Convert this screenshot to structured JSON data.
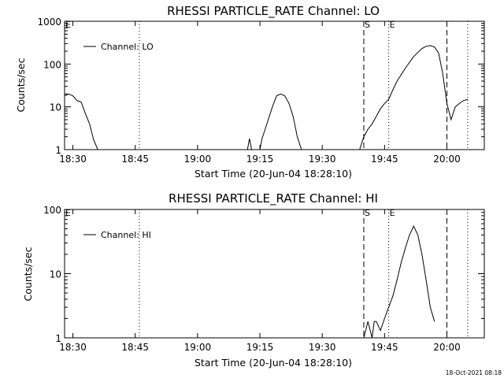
{
  "footer": {
    "timestamp": "18-Oct-2021 08:18"
  },
  "colors": {
    "background": "#ffffff",
    "foreground": "#000000"
  },
  "chart_data": [
    {
      "type": "line",
      "title": "RHESSI PARTICLE_RATE Channel: LO",
      "xlabel": "Start Time (20-Jun-04 18:28:10)",
      "ylabel": "Counts/sec",
      "yscale": "log",
      "xlim": [
        "18:28",
        "20:09"
      ],
      "ylim": [
        1,
        1000
      ],
      "xticks": [
        "18:30",
        "18:45",
        "19:00",
        "19:15",
        "19:30",
        "19:45",
        "20:00"
      ],
      "yticks": [
        {
          "value": 1,
          "label": "1"
        },
        {
          "value": 10,
          "label": "10"
        },
        {
          "value": 100,
          "label": "100"
        },
        {
          "value": 1000,
          "label": "1000"
        }
      ],
      "legend": {
        "label": "Channel: LO",
        "position": "top-left"
      },
      "markers": [
        {
          "time": "18:28",
          "label": "E",
          "style": "none"
        },
        {
          "time": "18:46",
          "label": "",
          "style": "dotted"
        },
        {
          "time": "19:40",
          "label": "S",
          "style": "dashed"
        },
        {
          "time": "19:46",
          "label": "E",
          "style": "dotted"
        },
        {
          "time": "20:00",
          "label": "",
          "style": "dashed"
        },
        {
          "time": "20:05",
          "label": "",
          "style": "dotted"
        }
      ],
      "series": [
        {
          "segments": [
            [
              [
                "18:28",
                18
              ],
              [
                "18:29",
                20
              ],
              [
                "18:30",
                18
              ],
              [
                "18:31",
                14
              ],
              [
                "18:32",
                13
              ],
              [
                "18:33",
                7
              ],
              [
                "18:34",
                4
              ],
              [
                "18:35",
                1.7
              ],
              [
                "18:36",
                1
              ]
            ],
            [
              [
                "19:12",
                1
              ],
              [
                "19:12.5",
                1.8
              ],
              [
                "19:13",
                1
              ]
            ],
            [
              [
                "19:15",
                1
              ],
              [
                "19:15.5",
                1.8
              ],
              [
                "19:16",
                2.5
              ],
              [
                "19:17",
                5
              ],
              [
                "19:18",
                10
              ],
              [
                "19:19",
                18
              ],
              [
                "19:20",
                20
              ],
              [
                "19:21",
                18
              ],
              [
                "19:22",
                12
              ],
              [
                "19:23",
                6
              ],
              [
                "19:24",
                2
              ],
              [
                "19:25",
                1
              ]
            ],
            [
              [
                "19:39",
                1
              ],
              [
                "19:40",
                2
              ],
              [
                "19:41",
                3
              ],
              [
                "19:42",
                4
              ],
              [
                "19:43",
                6
              ],
              [
                "19:44",
                9
              ],
              [
                "19:45",
                12
              ],
              [
                "19:46",
                15
              ],
              [
                "19:47",
                25
              ],
              [
                "19:48",
                40
              ],
              [
                "19:50",
                80
              ],
              [
                "19:52",
                150
              ],
              [
                "19:54",
                230
              ],
              [
                "19:55",
                260
              ],
              [
                "19:56",
                270
              ],
              [
                "19:57",
                250
              ],
              [
                "19:58",
                180
              ],
              [
                "19:59",
                60
              ],
              [
                "20:00",
                12
              ],
              [
                "20:01",
                5
              ],
              [
                "20:02",
                10
              ],
              [
                "20:03",
                12
              ],
              [
                "20:04",
                14
              ],
              [
                "20:05",
                15
              ]
            ]
          ]
        }
      ]
    },
    {
      "type": "line",
      "title": "RHESSI PARTICLE_RATE Channel: HI",
      "xlabel": "Start Time (20-Jun-04 18:28:10)",
      "ylabel": "Counts/sec",
      "yscale": "log",
      "xlim": [
        "18:28",
        "20:09"
      ],
      "ylim": [
        1,
        100
      ],
      "xticks": [
        "18:30",
        "18:45",
        "19:00",
        "19:15",
        "19:30",
        "19:45",
        "20:00"
      ],
      "yticks": [
        {
          "value": 1,
          "label": "1"
        },
        {
          "value": 10,
          "label": "10"
        },
        {
          "value": 100,
          "label": "100"
        }
      ],
      "legend": {
        "label": "Channel: HI",
        "position": "top-left"
      },
      "markers": [
        {
          "time": "18:28",
          "label": "E",
          "style": "none"
        },
        {
          "time": "18:46",
          "label": "",
          "style": "dotted"
        },
        {
          "time": "19:40",
          "label": "S",
          "style": "dashed"
        },
        {
          "time": "19:46",
          "label": "E",
          "style": "dotted"
        },
        {
          "time": "20:00",
          "label": "",
          "style": "dashed"
        },
        {
          "time": "20:05",
          "label": "",
          "style": "dotted"
        }
      ],
      "series": [
        {
          "segments": [
            [
              [
                "19:40",
                1
              ],
              [
                "19:41",
                1.8
              ],
              [
                "19:42",
                1
              ],
              [
                "19:42.5",
                1.8
              ],
              [
                "19:43",
                1.8
              ],
              [
                "19:44",
                1.3
              ],
              [
                "19:45",
                2
              ],
              [
                "19:46",
                3
              ],
              [
                "19:47",
                4.5
              ],
              [
                "19:48",
                8
              ],
              [
                "19:49",
                15
              ],
              [
                "19:50",
                25
              ],
              [
                "19:51",
                40
              ],
              [
                "19:52",
                55
              ],
              [
                "19:53",
                40
              ],
              [
                "19:54",
                20
              ],
              [
                "19:55",
                8
              ],
              [
                "19:56",
                3
              ],
              [
                "19:57",
                1.8
              ]
            ]
          ]
        }
      ]
    }
  ]
}
